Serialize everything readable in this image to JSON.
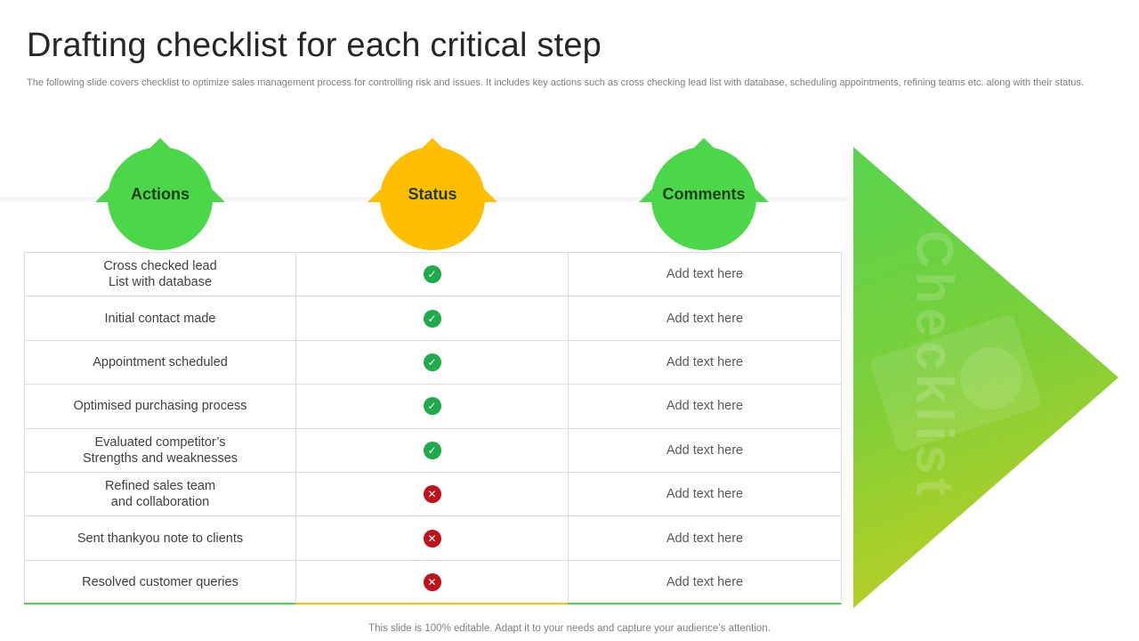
{
  "title": "Drafting checklist for each critical step",
  "subtitle": "The following slide covers checklist to optimize sales management process for controlling risk and issues. It includes key actions such as cross checking lead list with database, scheduling appointments, refining teams etc. along with their status.",
  "headers": {
    "actions": "Actions",
    "status": "Status",
    "comments": "Comments"
  },
  "colors": {
    "green": "#4cd64a",
    "yellow": "#ffbf00",
    "check": "#1fab4b",
    "cross": "#c0121b"
  },
  "icons": {
    "done": "check-circle-icon",
    "not_done": "x-circle-icon"
  },
  "rows": [
    {
      "action_line1": "Cross checked lead",
      "action_line2": "List with database",
      "status": "done",
      "comment": "Add text here"
    },
    {
      "action_line1": "Initial contact made",
      "action_line2": "",
      "status": "done",
      "comment": "Add text here"
    },
    {
      "action_line1": "Appointment scheduled",
      "action_line2": "",
      "status": "done",
      "comment": "Add text here"
    },
    {
      "action_line1": "Optimised purchasing process",
      "action_line2": "",
      "status": "done",
      "comment": "Add text here"
    },
    {
      "action_line1": "Evaluated competitor’s",
      "action_line2": "Strengths and weaknesses",
      "status": "done",
      "comment": "Add text here"
    },
    {
      "action_line1": "Refined sales team",
      "action_line2": "and collaboration",
      "status": "not_done",
      "comment": "Add text here"
    },
    {
      "action_line1": "Sent thankyou note to clients",
      "action_line2": "",
      "status": "not_done",
      "comment": "Add text here"
    },
    {
      "action_line1": "Resolved customer queries",
      "action_line2": "",
      "status": "not_done",
      "comment": "Add text here"
    }
  ],
  "side_label": "Checklist",
  "footer": "This slide is 100% editable. Adapt it to your needs and capture your audience’s attention."
}
